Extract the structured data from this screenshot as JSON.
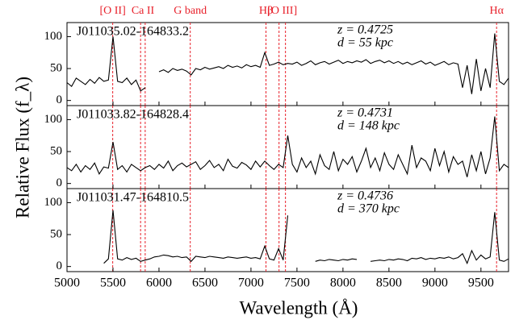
{
  "chart_data": {
    "type": "line",
    "xlabel": "Wavelength (Å)",
    "ylabel": "Relative Flux (f_λ)",
    "xlim": [
      5000,
      9800
    ],
    "xticks": [
      5000,
      5500,
      6000,
      6500,
      7000,
      7500,
      8000,
      8500,
      9000,
      9500
    ],
    "ylim": [
      -8,
      122
    ],
    "yticks": [
      0,
      50,
      100
    ],
    "lines": [
      {
        "label": "[O II]",
        "x": [
          5497
        ]
      },
      {
        "label": "Ca II",
        "x": [
          5800,
          5850
        ]
      },
      {
        "label": "G band",
        "x": [
          6340
        ]
      },
      {
        "label": "Hβ",
        "x": [
          7163
        ]
      },
      {
        "label": "[O III]",
        "x": [
          7305,
          7375
        ]
      },
      {
        "label": "Hα",
        "x": [
          9670
        ]
      }
    ],
    "line_color": "#e8202a",
    "x": [
      5000,
      5050,
      5100,
      5150,
      5200,
      5250,
      5300,
      5350,
      5400,
      5450,
      5500,
      5550,
      5600,
      5650,
      5700,
      5750,
      5800,
      5850,
      5900,
      5950,
      6000,
      6050,
      6100,
      6150,
      6200,
      6250,
      6300,
      6350,
      6400,
      6450,
      6500,
      6550,
      6600,
      6650,
      6700,
      6750,
      6800,
      6850,
      6900,
      6950,
      7000,
      7050,
      7100,
      7150,
      7200,
      7250,
      7300,
      7350,
      7400,
      7450,
      7500,
      7550,
      7600,
      7650,
      7700,
      7750,
      7800,
      7850,
      7900,
      7950,
      8000,
      8050,
      8100,
      8150,
      8200,
      8250,
      8300,
      8350,
      8400,
      8450,
      8500,
      8550,
      8600,
      8650,
      8700,
      8750,
      8800,
      8850,
      8900,
      8950,
      9000,
      9050,
      9100,
      9150,
      9200,
      9250,
      9300,
      9350,
      9400,
      9450,
      9500,
      9550,
      9600,
      9650,
      9700,
      9750,
      9800
    ],
    "series": [
      {
        "name": "J011035.02-164833.2",
        "z": "z = 0.4725",
        "d": "d = 55 kpc",
        "color": "#000000",
        "values": [
          28,
          22,
          35,
          30,
          25,
          33,
          27,
          36,
          30,
          32,
          100,
          30,
          28,
          35,
          25,
          32,
          15,
          20,
          null,
          null,
          45,
          48,
          44,
          50,
          47,
          49,
          46,
          40,
          50,
          48,
          52,
          49,
          51,
          53,
          50,
          55,
          52,
          54,
          51,
          56,
          53,
          55,
          52,
          75,
          55,
          57,
          60,
          56,
          58,
          57,
          60,
          55,
          58,
          62,
          56,
          59,
          61,
          57,
          60,
          63,
          58,
          61,
          59,
          62,
          60,
          64,
          58,
          61,
          63,
          59,
          62,
          58,
          61,
          57,
          60,
          56,
          59,
          62,
          57,
          60,
          55,
          58,
          61,
          56,
          59,
          57,
          20,
          55,
          10,
          65,
          15,
          50,
          20,
          105,
          30,
          25,
          35
        ]
      },
      {
        "name": "J011033.82-164828.4",
        "z": "z = 0.4731",
        "d": "d = 148 kpc",
        "color": "#000000",
        "values": [
          25,
          20,
          30,
          18,
          28,
          22,
          32,
          15,
          26,
          24,
          65,
          22,
          28,
          18,
          30,
          25,
          20,
          25,
          28,
          22,
          30,
          24,
          35,
          20,
          28,
          32,
          26,
          30,
          34,
          22,
          28,
          36,
          25,
          30,
          20,
          38,
          27,
          24,
          33,
          29,
          22,
          35,
          26,
          35,
          28,
          22,
          30,
          25,
          75,
          30,
          18,
          40,
          25,
          35,
          15,
          45,
          28,
          22,
          50,
          20,
          38,
          30,
          42,
          18,
          35,
          55,
          25,
          40,
          20,
          48,
          30,
          22,
          45,
          30,
          15,
          60,
          25,
          40,
          35,
          20,
          55,
          28,
          50,
          18,
          42,
          30,
          35,
          10,
          45,
          20,
          50,
          15,
          40,
          105,
          20,
          30,
          25
        ]
      },
      {
        "name": "J011031.47-164810.5",
        "z": "z = 0.4736",
        "d": "d = 370 kpc",
        "color": "#000000",
        "values": [
          null,
          null,
          null,
          null,
          null,
          null,
          null,
          null,
          5,
          12,
          88,
          12,
          10,
          14,
          11,
          13,
          8,
          10,
          12,
          15,
          16,
          18,
          17,
          15,
          16,
          14,
          15,
          8,
          16,
          15,
          14,
          16,
          15,
          14,
          13,
          15,
          14,
          13,
          14,
          15,
          13,
          14,
          12,
          32,
          12,
          10,
          28,
          10,
          80,
          null,
          null,
          null,
          null,
          null,
          8,
          10,
          9,
          11,
          10,
          9,
          11,
          10,
          12,
          11,
          null,
          null,
          8,
          9,
          10,
          9,
          11,
          10,
          12,
          11,
          9,
          13,
          12,
          14,
          11,
          13,
          12,
          14,
          13,
          15,
          12,
          14,
          20,
          5,
          25,
          10,
          18,
          12,
          15,
          85,
          10,
          8,
          12
        ]
      }
    ]
  }
}
